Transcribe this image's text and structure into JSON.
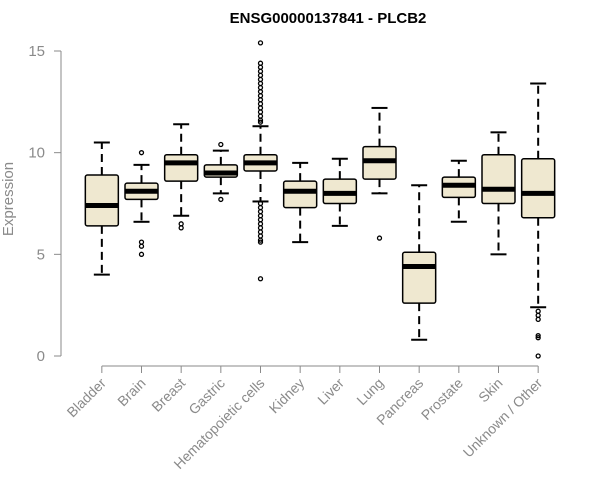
{
  "chart_data": {
    "type": "boxplot",
    "title": "ENSG00000137841 - PLCB2",
    "xlabel": "",
    "ylabel": "Expression",
    "ylim": [
      0,
      15
    ],
    "yticks": [
      0,
      5,
      10,
      15
    ],
    "colors": {
      "box_fill": "#efe8d0",
      "box_stroke": "#000000",
      "axis": "#8a8a8a",
      "text": "#8a8a8a"
    },
    "categories": [
      "Bladder",
      "Brain",
      "Breast",
      "Gastric",
      "Hematopoietic cells",
      "Kidney",
      "Liver",
      "Lung",
      "Pancreas",
      "Prostate",
      "Skin",
      "Unknown / Other"
    ],
    "boxes": [
      {
        "category": "Bladder",
        "whisker_low": 4.0,
        "q1": 6.4,
        "median": 7.4,
        "q3": 8.9,
        "whisker_high": 10.5,
        "outliers": []
      },
      {
        "category": "Brain",
        "whisker_low": 6.6,
        "q1": 7.7,
        "median": 8.1,
        "q3": 8.5,
        "whisker_high": 9.4,
        "outliers": [
          10.0,
          5.6,
          5.4,
          5.0
        ]
      },
      {
        "category": "Breast",
        "whisker_low": 6.9,
        "q1": 8.6,
        "median": 9.5,
        "q3": 9.9,
        "whisker_high": 11.4,
        "outliers": [
          6.5,
          6.3
        ]
      },
      {
        "category": "Gastric",
        "whisker_low": 8.0,
        "q1": 8.8,
        "median": 9.0,
        "q3": 9.4,
        "whisker_high": 10.1,
        "outliers": [
          10.4,
          7.7
        ]
      },
      {
        "category": "Hematopoietic cells",
        "whisker_low": 7.6,
        "q1": 9.1,
        "median": 9.5,
        "q3": 9.9,
        "whisker_high": 11.3,
        "outliers": [
          15.4,
          14.4,
          14.2,
          14.0,
          13.8,
          13.6,
          13.4,
          13.2,
          13.0,
          12.8,
          12.6,
          12.4,
          12.2,
          12.0,
          11.8,
          11.6,
          11.5,
          7.5,
          7.3,
          7.1,
          6.9,
          6.7,
          6.5,
          6.3,
          6.1,
          5.9,
          5.7,
          5.6,
          3.8
        ]
      },
      {
        "category": "Kidney",
        "whisker_low": 5.6,
        "q1": 7.3,
        "median": 8.1,
        "q3": 8.6,
        "whisker_high": 9.5,
        "outliers": []
      },
      {
        "category": "Liver",
        "whisker_low": 6.4,
        "q1": 7.5,
        "median": 8.0,
        "q3": 8.7,
        "whisker_high": 9.7,
        "outliers": []
      },
      {
        "category": "Lung",
        "whisker_low": 8.0,
        "q1": 8.7,
        "median": 9.6,
        "q3": 10.3,
        "whisker_high": 12.2,
        "outliers": [
          5.8
        ]
      },
      {
        "category": "Pancreas",
        "whisker_low": 0.8,
        "q1": 2.6,
        "median": 4.4,
        "q3": 5.1,
        "whisker_high": 8.4,
        "outliers": []
      },
      {
        "category": "Prostate",
        "whisker_low": 6.6,
        "q1": 7.8,
        "median": 8.4,
        "q3": 8.8,
        "whisker_high": 9.6,
        "outliers": []
      },
      {
        "category": "Skin",
        "whisker_low": 5.0,
        "q1": 7.5,
        "median": 8.2,
        "q3": 9.9,
        "whisker_high": 11.0,
        "outliers": []
      },
      {
        "category": "Unknown / Other",
        "whisker_low": 2.4,
        "q1": 6.8,
        "median": 8.0,
        "q3": 9.7,
        "whisker_high": 13.4,
        "outliers": [
          2.2,
          2.0,
          1.8,
          1.0,
          0.9,
          0.0
        ]
      }
    ]
  }
}
